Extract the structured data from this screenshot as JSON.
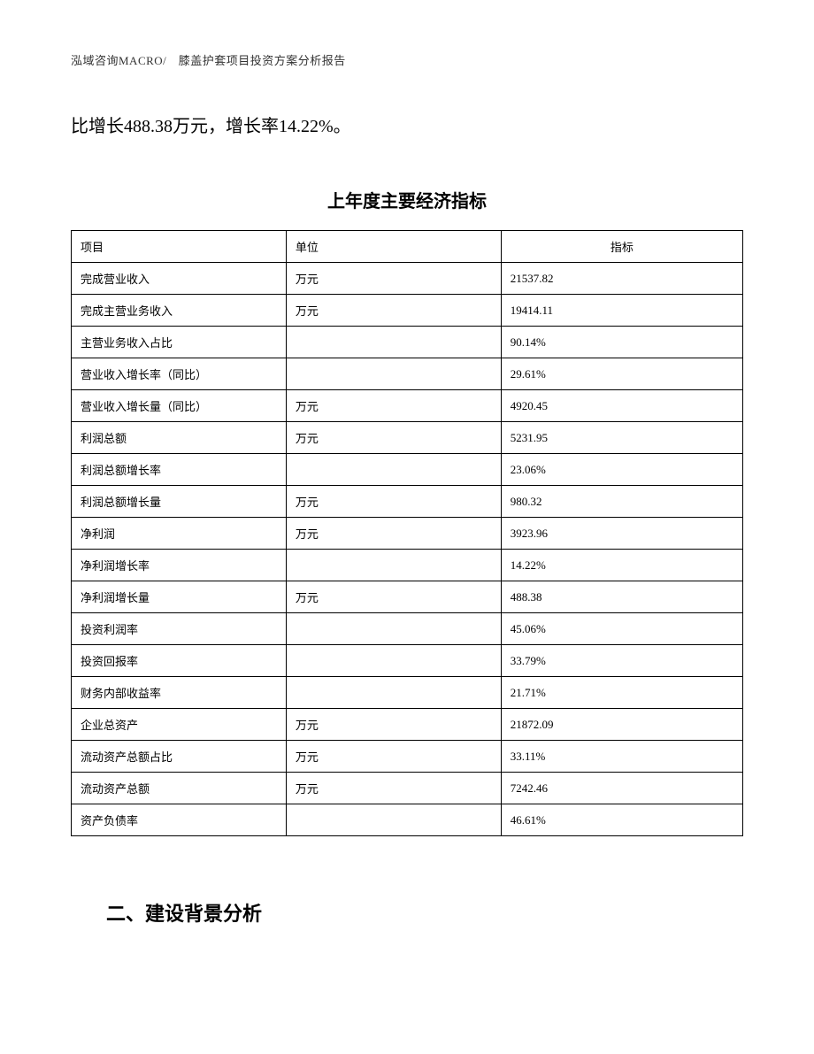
{
  "header": {
    "text": "泓域咨询MACRO/　膝盖护套项目投资方案分析报告"
  },
  "body": {
    "paragraph": "比增长488.38万元，增长率14.22%。"
  },
  "table": {
    "title": "上年度主要经济指标",
    "headers": {
      "col1": "项目",
      "col2": "单位",
      "col3": "指标"
    },
    "rows": [
      {
        "item": "完成营业收入",
        "unit": "万元",
        "indicator": "21537.82"
      },
      {
        "item": "完成主营业务收入",
        "unit": "万元",
        "indicator": "19414.11"
      },
      {
        "item": "主营业务收入占比",
        "unit": "",
        "indicator": "90.14%"
      },
      {
        "item": "营业收入增长率（同比）",
        "unit": "",
        "indicator": "29.61%"
      },
      {
        "item": "营业收入增长量（同比）",
        "unit": "万元",
        "indicator": "4920.45"
      },
      {
        "item": "利润总额",
        "unit": "万元",
        "indicator": "5231.95"
      },
      {
        "item": "利润总额增长率",
        "unit": "",
        "indicator": "23.06%"
      },
      {
        "item": "利润总额增长量",
        "unit": "万元",
        "indicator": "980.32"
      },
      {
        "item": "净利润",
        "unit": "万元",
        "indicator": "3923.96"
      },
      {
        "item": "净利润增长率",
        "unit": "",
        "indicator": "14.22%"
      },
      {
        "item": "净利润增长量",
        "unit": "万元",
        "indicator": "488.38"
      },
      {
        "item": "投资利润率",
        "unit": "",
        "indicator": "45.06%"
      },
      {
        "item": "投资回报率",
        "unit": "",
        "indicator": "33.79%"
      },
      {
        "item": "财务内部收益率",
        "unit": "",
        "indicator": "21.71%"
      },
      {
        "item": "企业总资产",
        "unit": "万元",
        "indicator": "21872.09"
      },
      {
        "item": "流动资产总额占比",
        "unit": "万元",
        "indicator": "33.11%"
      },
      {
        "item": "流动资产总额",
        "unit": "万元",
        "indicator": "7242.46"
      },
      {
        "item": "资产负债率",
        "unit": "",
        "indicator": "46.61%"
      }
    ]
  },
  "section": {
    "heading": "二、建设背景分析"
  }
}
